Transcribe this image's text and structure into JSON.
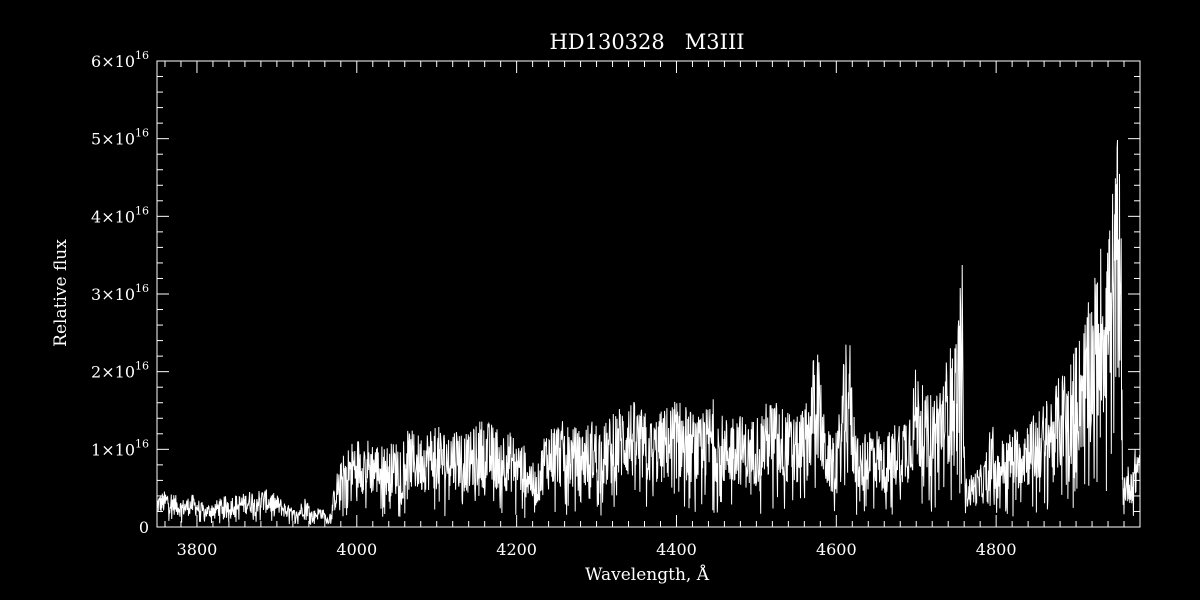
{
  "colors": {
    "background": "#000000",
    "foreground": "#ffffff"
  },
  "chart_data": {
    "type": "line",
    "title": "HD130328   M3III",
    "xlabel": "Wavelength, Å",
    "ylabel": "Relative flux",
    "xlim": [
      3750,
      4980
    ],
    "ylim": [
      0,
      6e+16
    ],
    "grid": false,
    "x_ticks": [
      3800,
      4000,
      4200,
      4400,
      4600,
      4800
    ],
    "x_tick_labels": [
      "3800",
      "4000",
      "4200",
      "4400",
      "4600",
      "4800"
    ],
    "y_ticks": [
      0,
      1e+16,
      2e+16,
      3e+16,
      4e+16,
      5e+16,
      6e+16
    ],
    "y_tick_labels": [
      {
        "mantissa": "0",
        "exp": ""
      },
      {
        "mantissa": "1×10",
        "exp": "16"
      },
      {
        "mantissa": "2×10",
        "exp": "16"
      },
      {
        "mantissa": "3×10",
        "exp": "16"
      },
      {
        "mantissa": "4×10",
        "exp": "16"
      },
      {
        "mantissa": "5×10",
        "exp": "16"
      },
      {
        "mantissa": "6×10",
        "exp": "16"
      }
    ],
    "series": [
      {
        "x": [
          3750,
          3765,
          3780,
          3795,
          3810,
          3825,
          3840,
          3855,
          3870,
          3885,
          3900,
          3915,
          3925,
          3935,
          3945,
          3955,
          3965,
          3975,
          3985,
          3995,
          4005,
          4020,
          4035,
          4050,
          4065,
          4080,
          4095,
          4110,
          4125,
          4140,
          4155,
          4170,
          4185,
          4200,
          4215,
          4225,
          4235,
          4250,
          4265,
          4280,
          4295,
          4310,
          4325,
          4340,
          4355,
          4370,
          4385,
          4400,
          4415,
          4430,
          4445,
          4460,
          4475,
          4490,
          4505,
          4520,
          4535,
          4550,
          4565,
          4575,
          4585,
          4595,
          4605,
          4615,
          4620,
          4630,
          4645,
          4660,
          4675,
          4690,
          4700,
          4712,
          4725,
          4740,
          4752,
          4758,
          4762,
          4770,
          4785,
          4795,
          4798,
          4805,
          4820,
          4835,
          4850,
          4865,
          4880,
          4895,
          4910,
          4920,
          4930,
          4940,
          4950,
          4955,
          4958,
          4962,
          4970,
          4980
        ],
        "y": [
          3000000000000000.0,
          3500000000000000.0,
          2500000000000000.0,
          3000000000000000.0,
          2000000000000000.0,
          2500000000000000.0,
          3000000000000000.0,
          3000000000000000.0,
          3500000000000000.0,
          3500000000000000.0,
          3000000000000000.0,
          2000000000000000.0,
          1500000000000000.0,
          3000000000000000.0,
          1500000000000000.0,
          2000000000000000.0,
          800000000000000.0,
          5000000000000000.0,
          7000000000000000.0,
          8000000000000000.0,
          8500000000000000.0,
          8000000000000000.0,
          7500000000000000.0,
          8000000000000000.0,
          9000000000000000.0,
          8500000000000000.0,
          9500000000000000.0,
          9000000000000000.0,
          9500000000000000.0,
          8500000000000000.0,
          1e+16,
          9500000000000000.0,
          9000000000000000.0,
          8500000000000000.0,
          7000000000000000.0,
          5000000000000000.0,
          9000000000000000.0,
          1e+16,
          9500000000000000.0,
          9000000000000000.0,
          1e+16,
          9500000000000000.0,
          1.1e+16,
          1.2e+16,
          1.1e+16,
          1e+16,
          1.1e+16,
          1.2e+16,
          1.1e+16,
          1e+16,
          1.2e+16,
          1e+16,
          1.1e+16,
          9500000000000000.0,
          1.1e+16,
          1.2e+16,
          1.1e+16,
          1e+16,
          1.2e+16,
          1.8e+16,
          1e+16,
          8000000000000000.0,
          1.1e+16,
          2.1e+16,
          1.2e+16,
          7500000000000000.0,
          1e+16,
          8000000000000000.0,
          1e+16,
          1.1e+16,
          1.5e+16,
          1.2e+16,
          1.3e+16,
          1.6e+16,
          1.9e+16,
          2.5e+16,
          4500000000000000.0,
          5000000000000000.0,
          6000000000000000.0,
          1.1e+16,
          6000000000000000.0,
          8000000000000000.0,
          9000000000000000.0,
          1e+16,
          1.05e+16,
          1.2e+16,
          1.4e+16,
          1.6e+16,
          1.9e+16,
          2.2e+16,
          2.6e+16,
          2.9e+16,
          3.3e+16,
          4.8e+16,
          5000000000000000.0,
          5500000000000000.0,
          6000000000000000.0,
          9000000000000000.0
        ]
      }
    ]
  }
}
